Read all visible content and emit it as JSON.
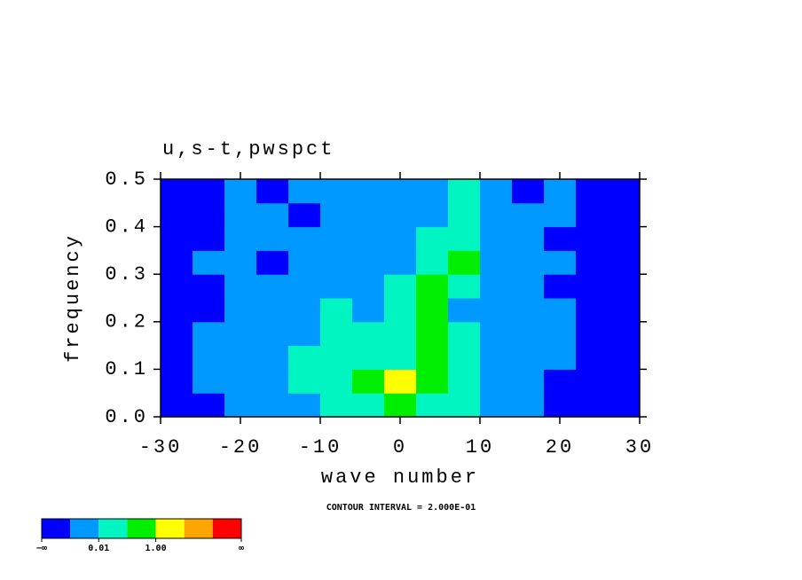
{
  "chart_data": {
    "type": "contour",
    "title": "u,s-t,pwspct",
    "xlabel": "wave number",
    "ylabel": "frequency",
    "annotation": "CONTOUR INTERVAL = 2.000E-01",
    "xlim": [
      -30,
      30
    ],
    "ylim": [
      0,
      0.5
    ],
    "xticks": [
      -30,
      -20,
      -10,
      0,
      10,
      20,
      30
    ],
    "yticks": [
      {
        "value": 0,
        "label": "0.0"
      },
      0.1,
      0.2,
      0.3,
      0.4,
      0.5
    ],
    "x": [
      -28,
      -24,
      -20,
      -16,
      -12,
      -8,
      -4,
      0,
      4,
      8,
      12,
      16,
      20,
      24,
      28
    ],
    "y": [
      0.025,
      0.075,
      0.125,
      0.175,
      0.225,
      0.275,
      0.325,
      0.375,
      0.425,
      0.475
    ],
    "z": [
      [
        0,
        0,
        1,
        1,
        1,
        2,
        2,
        3,
        2,
        2,
        1,
        1,
        0,
        0,
        0
      ],
      [
        0,
        1,
        1,
        1,
        2,
        2,
        3,
        4,
        3,
        2,
        1,
        1,
        0,
        0,
        0
      ],
      [
        0,
        1,
        1,
        1,
        2,
        2,
        2,
        2,
        3,
        2,
        1,
        1,
        1,
        0,
        0
      ],
      [
        0,
        1,
        1,
        1,
        1,
        2,
        2,
        2,
        3,
        2,
        1,
        1,
        1,
        0,
        0
      ],
      [
        0,
        0,
        1,
        1,
        1,
        2,
        1,
        2,
        3,
        1,
        1,
        1,
        1,
        0,
        0
      ],
      [
        0,
        0,
        1,
        1,
        1,
        1,
        1,
        2,
        3,
        2,
        1,
        1,
        0,
        0,
        0
      ],
      [
        0,
        1,
        1,
        0,
        1,
        1,
        1,
        1,
        2,
        3,
        1,
        1,
        1,
        0,
        0
      ],
      [
        0,
        0,
        1,
        1,
        1,
        1,
        1,
        1,
        2,
        2,
        1,
        1,
        0,
        0,
        0
      ],
      [
        0,
        0,
        1,
        1,
        0,
        1,
        1,
        1,
        1,
        2,
        1,
        1,
        1,
        0,
        0
      ],
      [
        0,
        0,
        1,
        0,
        1,
        1,
        1,
        1,
        1,
        2,
        1,
        0,
        1,
        0,
        0
      ]
    ],
    "colorbar": {
      "colors": [
        "#0000ff",
        "#0099ff",
        "#00f5c0",
        "#00ee00",
        "#ffff00",
        "#ffa500",
        "#ff0000"
      ],
      "labels": [
        {
          "boundary": 0,
          "label": "−∞"
        },
        {
          "boundary": 2,
          "label": "0.01"
        },
        {
          "boundary": 4,
          "label": "1.00"
        },
        {
          "boundary": 7,
          "label": "∞"
        }
      ]
    }
  }
}
